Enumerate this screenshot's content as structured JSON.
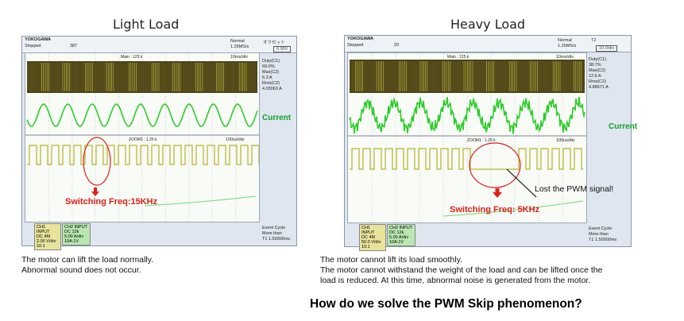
{
  "left": {
    "title": "Light Load",
    "scope": {
      "brand": "YOKOGAWA",
      "status": "Stopped",
      "count": "387",
      "mode": "Normal",
      "rate": "1.25MS/s",
      "offset_label": "オフセット",
      "offset_value": "0.00V",
      "time_div_top": "10ms/div",
      "main_label": "Main : 125 k",
      "zoom_label": "ZOOM1 : 1.25 k",
      "time_div_bottom": "100us/div",
      "meas": [
        "Duty(C1)",
        "69.0%",
        "Max(C2)",
        "6.3 A",
        "Rms(C2)",
        "4.03063 A"
      ],
      "ch1": [
        "CH1 INPUT",
        "DC 4M",
        "2.00 V/div",
        "10:1"
      ],
      "ch2": [
        "CH2 INPUT",
        "DC 12k",
        "5.00 A/div",
        "10A:1V"
      ],
      "event": [
        "Event Cycle",
        "More than",
        "T1   1.50000ms"
      ]
    },
    "current_label": "Current",
    "freq_label": "Switching Freq:15KHz",
    "description": [
      "The motor can lift the load normally.",
      "Abnormal sound does not occur."
    ]
  },
  "right": {
    "title": "Heavy Load",
    "scope": {
      "brand": "YOKOGAWA",
      "status": "Stopped",
      "count": "20",
      "mode": "Normal",
      "rate": "1.25MS/s",
      "offset_label": "T2",
      "offset_value": "10.0/div",
      "time_div_top": "10ms/div",
      "main_label": "Main : 125 k",
      "zoom_label": "ZOOM1 : 1.25 k",
      "time_div_bottom": "100us/div",
      "meas": [
        "Duty(C1)",
        "38.7%",
        "Max(C2)",
        "12.6 A",
        "Rms(C2)",
        "4.88671 A"
      ],
      "ch1": [
        "CH1 INPUT",
        "DC 4M",
        "50.0 V/div",
        "10:1"
      ],
      "ch2": [
        "CH2 INPUT",
        "DC 12k",
        "5.00 A/div",
        "10A:1V"
      ],
      "event": [
        "Event Cycle",
        "More than",
        "T1   1.50000ms"
      ]
    },
    "current_label": "Current",
    "freq_label": "Switching Freq: 5KHz",
    "lost_label": "Lost the PWM signal!",
    "description": [
      "The motor cannot lift its load smoothly.",
      "The motor cannot withstand the weight of the load and can be lifted once the",
      "load is reduced. At this time, abnormal noise is generated from the motor."
    ]
  },
  "question": "How do we solve the PWM Skip phenomenon?"
}
